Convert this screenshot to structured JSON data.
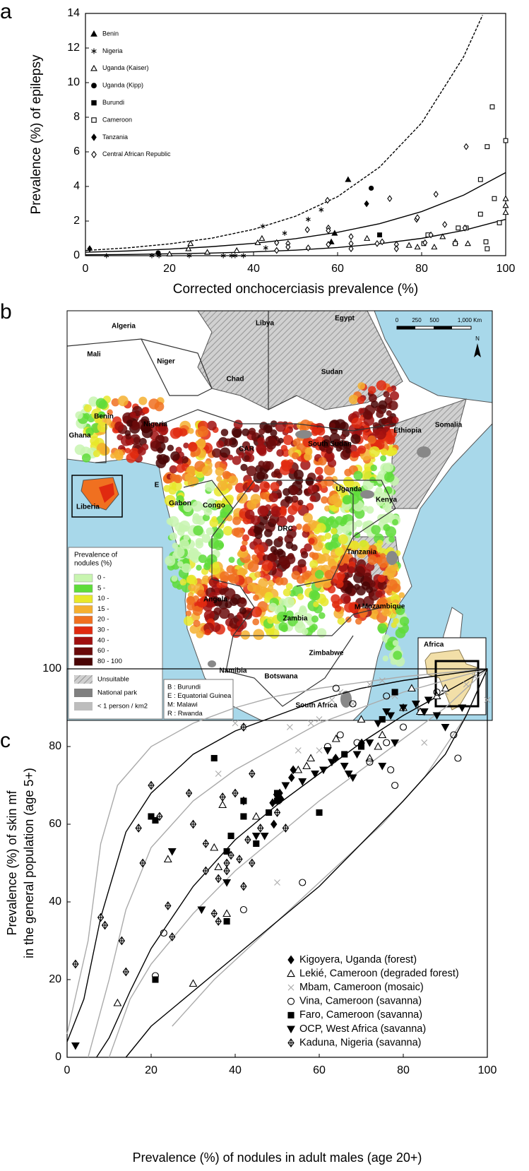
{
  "panel_labels": [
    "a",
    "b",
    "c"
  ],
  "chart_data": [
    {
      "type": "scatter",
      "ylabel": [
        "Prevalence (%) of epilepsy"
      ],
      "xlabel": "Corrected onchocerciasis prevalence (%)",
      "xlim": [
        0,
        100
      ],
      "ylim": [
        0,
        14
      ],
      "xticks": [
        0,
        20,
        40,
        60,
        80,
        100
      ],
      "yticks": [
        0,
        2,
        4,
        6,
        8,
        10,
        12,
        14
      ],
      "legend": "upper left",
      "grid": false,
      "curves": [
        {
          "style": "dashed",
          "color": "#000",
          "x": [
            0,
            10,
            20,
            30,
            40,
            50,
            60,
            70,
            80,
            90,
            94.5
          ],
          "values": [
            0.3,
            0.45,
            0.68,
            1.01,
            1.52,
            2.28,
            3.41,
            5.12,
            7.67,
            11.5,
            13.9
          ]
        },
        {
          "style": "solid",
          "color": "#000",
          "x": [
            0,
            10,
            20,
            30,
            40,
            50,
            60,
            70,
            80,
            90,
            100
          ],
          "values": [
            0.2,
            0.27,
            0.38,
            0.52,
            0.71,
            0.98,
            1.35,
            1.85,
            2.55,
            3.5,
            4.8
          ]
        },
        {
          "style": "solid",
          "color": "#000",
          "x": [
            0,
            10,
            20,
            30,
            40,
            50,
            60,
            70,
            80,
            90,
            100
          ],
          "values": [
            0.05,
            0.07,
            0.11,
            0.15,
            0.22,
            0.32,
            0.47,
            0.69,
            1.0,
            1.46,
            2.1
          ]
        }
      ],
      "series": [
        {
          "name": "Benin",
          "marker": "triangle",
          "color": "#000",
          "x": [
            58.5,
            59.3,
            62.5
          ],
          "values": [
            0.8,
            1.3,
            4.4
          ]
        },
        {
          "name": "Nigeria",
          "marker": "star",
          "color": "#000",
          "x": [
            5,
            15.8,
            17.5,
            24.7,
            32.8,
            34.8,
            35.6,
            37.6,
            42.9,
            42.2,
            47.4,
            53,
            56.1
          ],
          "values": [
            0,
            0,
            0,
            0,
            0,
            0,
            0,
            0,
            0.45,
            1.7,
            1.3,
            2.1,
            2.65
          ]
        },
        {
          "name": "Uganda (Kaiser)",
          "marker": "triangle-open",
          "color": "#000",
          "x": [
            20,
            24.5,
            25,
            29,
            36,
            41,
            42,
            67,
            77,
            79,
            83,
            85,
            88,
            91,
            100,
            100,
            100
          ],
          "values": [
            0.1,
            0.4,
            0.7,
            0.2,
            0.3,
            0.75,
            1.0,
            1.0,
            0.6,
            0.5,
            0.5,
            1.1,
            0.8,
            0.7,
            2.5,
            2.9,
            3.3
          ]
        },
        {
          "name": "Uganda (Kipp)",
          "marker": "circle",
          "color": "#000",
          "x": [
            17.3,
            68
          ],
          "values": [
            0.16,
            3.9
          ]
        },
        {
          "name": "Burundi",
          "marker": "square",
          "color": "#000",
          "x": [
            70
          ],
          "values": [
            1.2
          ]
        },
        {
          "name": "Cameroon",
          "marker": "square-open",
          "color": "#000",
          "x": [
            96.8,
            95.6,
            100,
            94,
            97.3,
            94,
            98.5,
            90.6,
            88.7,
            95.3,
            95.6,
            81.5,
            80.5,
            88
          ],
          "values": [
            8.6,
            6.3,
            6.65,
            4.4,
            3.3,
            2.4,
            1.9,
            1.6,
            1.6,
            0.8,
            0.4,
            1.2,
            0.7,
            0.7
          ]
        },
        {
          "name": "Tanzania",
          "marker": "diamond",
          "color": "#000",
          "x": [
            1,
            66.9
          ],
          "values": [
            0.4,
            3.0
          ]
        },
        {
          "name": "Central African Republic",
          "marker": "diamond-open",
          "color": "#000",
          "x": [
            90.6,
            83.4,
            72.4,
            57.6,
            52.8,
            57.8,
            57.8,
            63.2,
            63.2,
            63.2,
            57.8,
            53,
            45.5,
            45.5,
            48.2,
            48.2,
            69.4,
            70.6,
            74,
            74,
            78.8,
            79,
            80.8,
            82.2,
            85.5,
            90.3
          ],
          "values": [
            6.3,
            3.55,
            3.3,
            3.2,
            1.5,
            1.6,
            1.45,
            1.1,
            0.7,
            0.4,
            0.65,
            0.45,
            0.75,
            0.3,
            0.7,
            0.5,
            0.7,
            0.8,
            0.65,
            0.4,
            2.1,
            2.2,
            0.75,
            1.2,
            1.8,
            1.6
          ]
        }
      ]
    },
    {
      "type": "scatter",
      "ylabel": [
        "Prevalence (%) of skin mf",
        "in the general population (age 5+)"
      ],
      "xlabel": "Prevalence (%) of nodules in adult males (age 20+)",
      "xlim": [
        0,
        100
      ],
      "ylim": [
        0,
        100
      ],
      "xticks": [
        0,
        20,
        40,
        60,
        80,
        100
      ],
      "yticks": [
        0,
        20,
        40,
        60,
        80,
        100
      ],
      "legend": "lower right",
      "grid": false,
      "curves": [
        {
          "style": "solid",
          "color": "#aaaaaa",
          "x": [
            0,
            5,
            8,
            12,
            20,
            30,
            40,
            50,
            60,
            80,
            100
          ],
          "values": [
            6,
            30,
            55,
            70,
            80,
            86,
            90,
            93,
            95,
            98,
            100
          ]
        },
        {
          "style": "solid",
          "color": "#aaaaaa",
          "x": [
            5,
            10,
            14,
            20,
            30,
            40,
            50,
            60,
            70,
            80,
            100
          ],
          "values": [
            0,
            20,
            38,
            54,
            66,
            74,
            80,
            86,
            90,
            94,
            100
          ]
        },
        {
          "style": "solid",
          "color": "#aaaaaa",
          "x": [
            10,
            15,
            20,
            30,
            40,
            50,
            60,
            70,
            80,
            90,
            100
          ],
          "values": [
            0,
            15,
            24,
            37,
            48,
            57,
            66,
            74,
            82,
            90,
            100
          ]
        },
        {
          "style": "solid",
          "color": "#aaaaaa",
          "x": [
            25,
            35,
            45,
            55,
            65,
            75,
            85,
            95,
            100
          ],
          "values": [
            8,
            20,
            30,
            40,
            50,
            60,
            72,
            88,
            100
          ]
        },
        {
          "style": "solid",
          "color": "#000",
          "x": [
            0,
            4,
            8,
            14,
            20,
            30,
            40,
            50,
            60,
            70,
            80,
            100
          ],
          "values": [
            4,
            15,
            36,
            58,
            68,
            78,
            84,
            88,
            92,
            95,
            97,
            100
          ]
        },
        {
          "style": "solid",
          "color": "#000",
          "x": [
            7,
            10,
            15,
            20,
            30,
            40,
            50,
            60,
            70,
            80,
            90,
            100
          ],
          "values": [
            0,
            5,
            17,
            28,
            44,
            56,
            65,
            73,
            81,
            88,
            94,
            100
          ]
        },
        {
          "style": "solid",
          "color": "#000",
          "x": [
            14,
            20,
            30,
            40,
            50,
            60,
            70,
            80,
            90,
            95,
            100
          ],
          "values": [
            0,
            8,
            17,
            26,
            35,
            44,
            55,
            66,
            78,
            88,
            100
          ]
        }
      ],
      "series": [
        {
          "name": "Kigoyera, Uganda (forest)",
          "marker": "diamond",
          "color": "#000",
          "x": [
            42,
            48.9,
            49.2,
            50.9,
            50.6,
            53.4,
            53.8,
            70.1,
            63.9
          ],
          "values": [
            66,
            65.5,
            60,
            66.5,
            68,
            72,
            74,
            80.9,
            77
          ]
        },
        {
          "name": "Lekié, Cameroon (degraded forest)",
          "marker": "triangle-open",
          "color": "#000",
          "x": [
            12,
            30,
            24,
            35,
            38,
            37,
            45,
            57,
            58,
            64,
            70,
            72,
            74,
            75,
            80,
            82,
            84,
            88,
            90,
            55,
            36
          ],
          "values": [
            14,
            19,
            51,
            54,
            37,
            65,
            62,
            75,
            77,
            82,
            87,
            77,
            80,
            83,
            90,
            95,
            89,
            93,
            95,
            74,
            49
          ]
        },
        {
          "name": "Mbam, Cameroon (mosaic)",
          "marker": "x",
          "color": "#aaaaaa",
          "x": [
            50,
            40,
            42,
            53,
            55,
            58,
            60,
            63,
            65,
            72,
            75,
            85,
            90,
            95,
            97,
            100,
            36,
            60,
            78,
            68
          ],
          "values": [
            45,
            86,
            85,
            85,
            79,
            86,
            87,
            92,
            94,
            96,
            97,
            81,
            94,
            96,
            98,
            92,
            73,
            79,
            93,
            91
          ]
        },
        {
          "name": "Vina, Cameroon (savanna)",
          "marker": "circle-open",
          "color": "#000",
          "x": [
            21,
            23,
            42,
            56,
            62,
            64,
            65,
            68,
            69,
            72,
            76,
            77,
            78,
            80,
            88,
            92,
            93,
            76
          ],
          "values": [
            21,
            32,
            38,
            45,
            80,
            95,
            83,
            91,
            81,
            76,
            93,
            74,
            70,
            85,
            94,
            83,
            77,
            81
          ]
        },
        {
          "name": "Faro, Cameroon (savanna)",
          "marker": "square",
          "color": "#000",
          "x": [
            35,
            21,
            20,
            21,
            38,
            38,
            39,
            42,
            42,
            45,
            48,
            50,
            50,
            60,
            66,
            70,
            75,
            78
          ],
          "values": [
            77,
            61,
            62,
            20,
            35,
            53,
            57,
            62,
            66,
            55,
            63,
            66,
            68,
            63,
            78,
            80,
            87,
            94
          ]
        },
        {
          "name": "OCP, West Africa (savanna)",
          "marker": "triangle-down",
          "color": "#000",
          "x": [
            2,
            25,
            32,
            38,
            45,
            47,
            50,
            52,
            56,
            59,
            61,
            62,
            63,
            66,
            67,
            68,
            69,
            72,
            74,
            75,
            76,
            77,
            78,
            80,
            83,
            85,
            86,
            88,
            90,
            94
          ],
          "values": [
            3,
            53,
            38,
            45,
            57,
            57,
            67,
            70,
            71,
            73,
            74,
            79,
            76,
            75,
            73,
            72,
            78,
            81,
            86,
            75,
            89,
            88,
            81,
            90,
            91,
            89,
            92,
            88,
            85,
            90
          ]
        },
        {
          "name": "Kaduna, Nigeria (savanna)",
          "marker": "diamond-cross",
          "color": "#000",
          "x": [
            2,
            8,
            9,
            13,
            14,
            17,
            18,
            20,
            22,
            24,
            25,
            29,
            30,
            33,
            35,
            36,
            36,
            37,
            38,
            38,
            39,
            40,
            41,
            42,
            42,
            43,
            44,
            44,
            46,
            50,
            52,
            33
          ],
          "values": [
            24,
            36,
            34,
            30,
            22,
            59,
            50,
            70,
            62,
            39,
            31,
            68,
            60,
            55,
            37,
            46,
            35,
            67,
            50,
            48,
            52,
            68,
            51,
            44,
            85,
            56,
            50,
            73,
            59,
            63,
            59,
            48
          ]
        }
      ]
    }
  ],
  "map": {
    "countries": [
      "Algeria",
      "Libya",
      "Egypt",
      "Mali",
      "Niger",
      "Chad",
      "Sudan",
      "Benin",
      "Nigeria",
      "Ghana",
      "Somalia",
      "Ethiopia",
      "South Sudan",
      "CAR",
      "Uganda",
      "Kenya",
      "Gabon",
      "Congo",
      "DRC",
      "Tanzania",
      "Angola",
      "Zambia",
      "Mozambique",
      "M",
      "Zimbabwe",
      "Namibia",
      "Botswana",
      "South Africa",
      "E"
    ],
    "scale_labels": [
      "0",
      "250",
      "500",
      "1,000 Km"
    ],
    "north": "N",
    "inset_labels": [
      "Liberia",
      "Africa"
    ],
    "legend": {
      "title": [
        "Prevalence of",
        "nodules (%)"
      ],
      "classes": [
        {
          "label": "0 -",
          "color": "#c8f5b0"
        },
        {
          "label": "5 -",
          "color": "#5fdc3a"
        },
        {
          "label": "10 -",
          "color": "#e8e82a"
        },
        {
          "label": "15 -",
          "color": "#f5b030"
        },
        {
          "label": "20 -",
          "color": "#f07020"
        },
        {
          "label": "30 -",
          "color": "#e02a10"
        },
        {
          "label": "40 -",
          "color": "#a01010"
        },
        {
          "label": "60 -",
          "color": "#6a0a0a"
        },
        {
          "label": "80 - 100",
          "color": "#4a0505"
        }
      ],
      "other": [
        "Unsuitable",
        "National park",
        "< 1 person / km2"
      ]
    },
    "abbreviations": [
      "B : Burundi",
      "E : Equatorial Guinea",
      "M: Malawi",
      "R : Rwanda"
    ]
  }
}
